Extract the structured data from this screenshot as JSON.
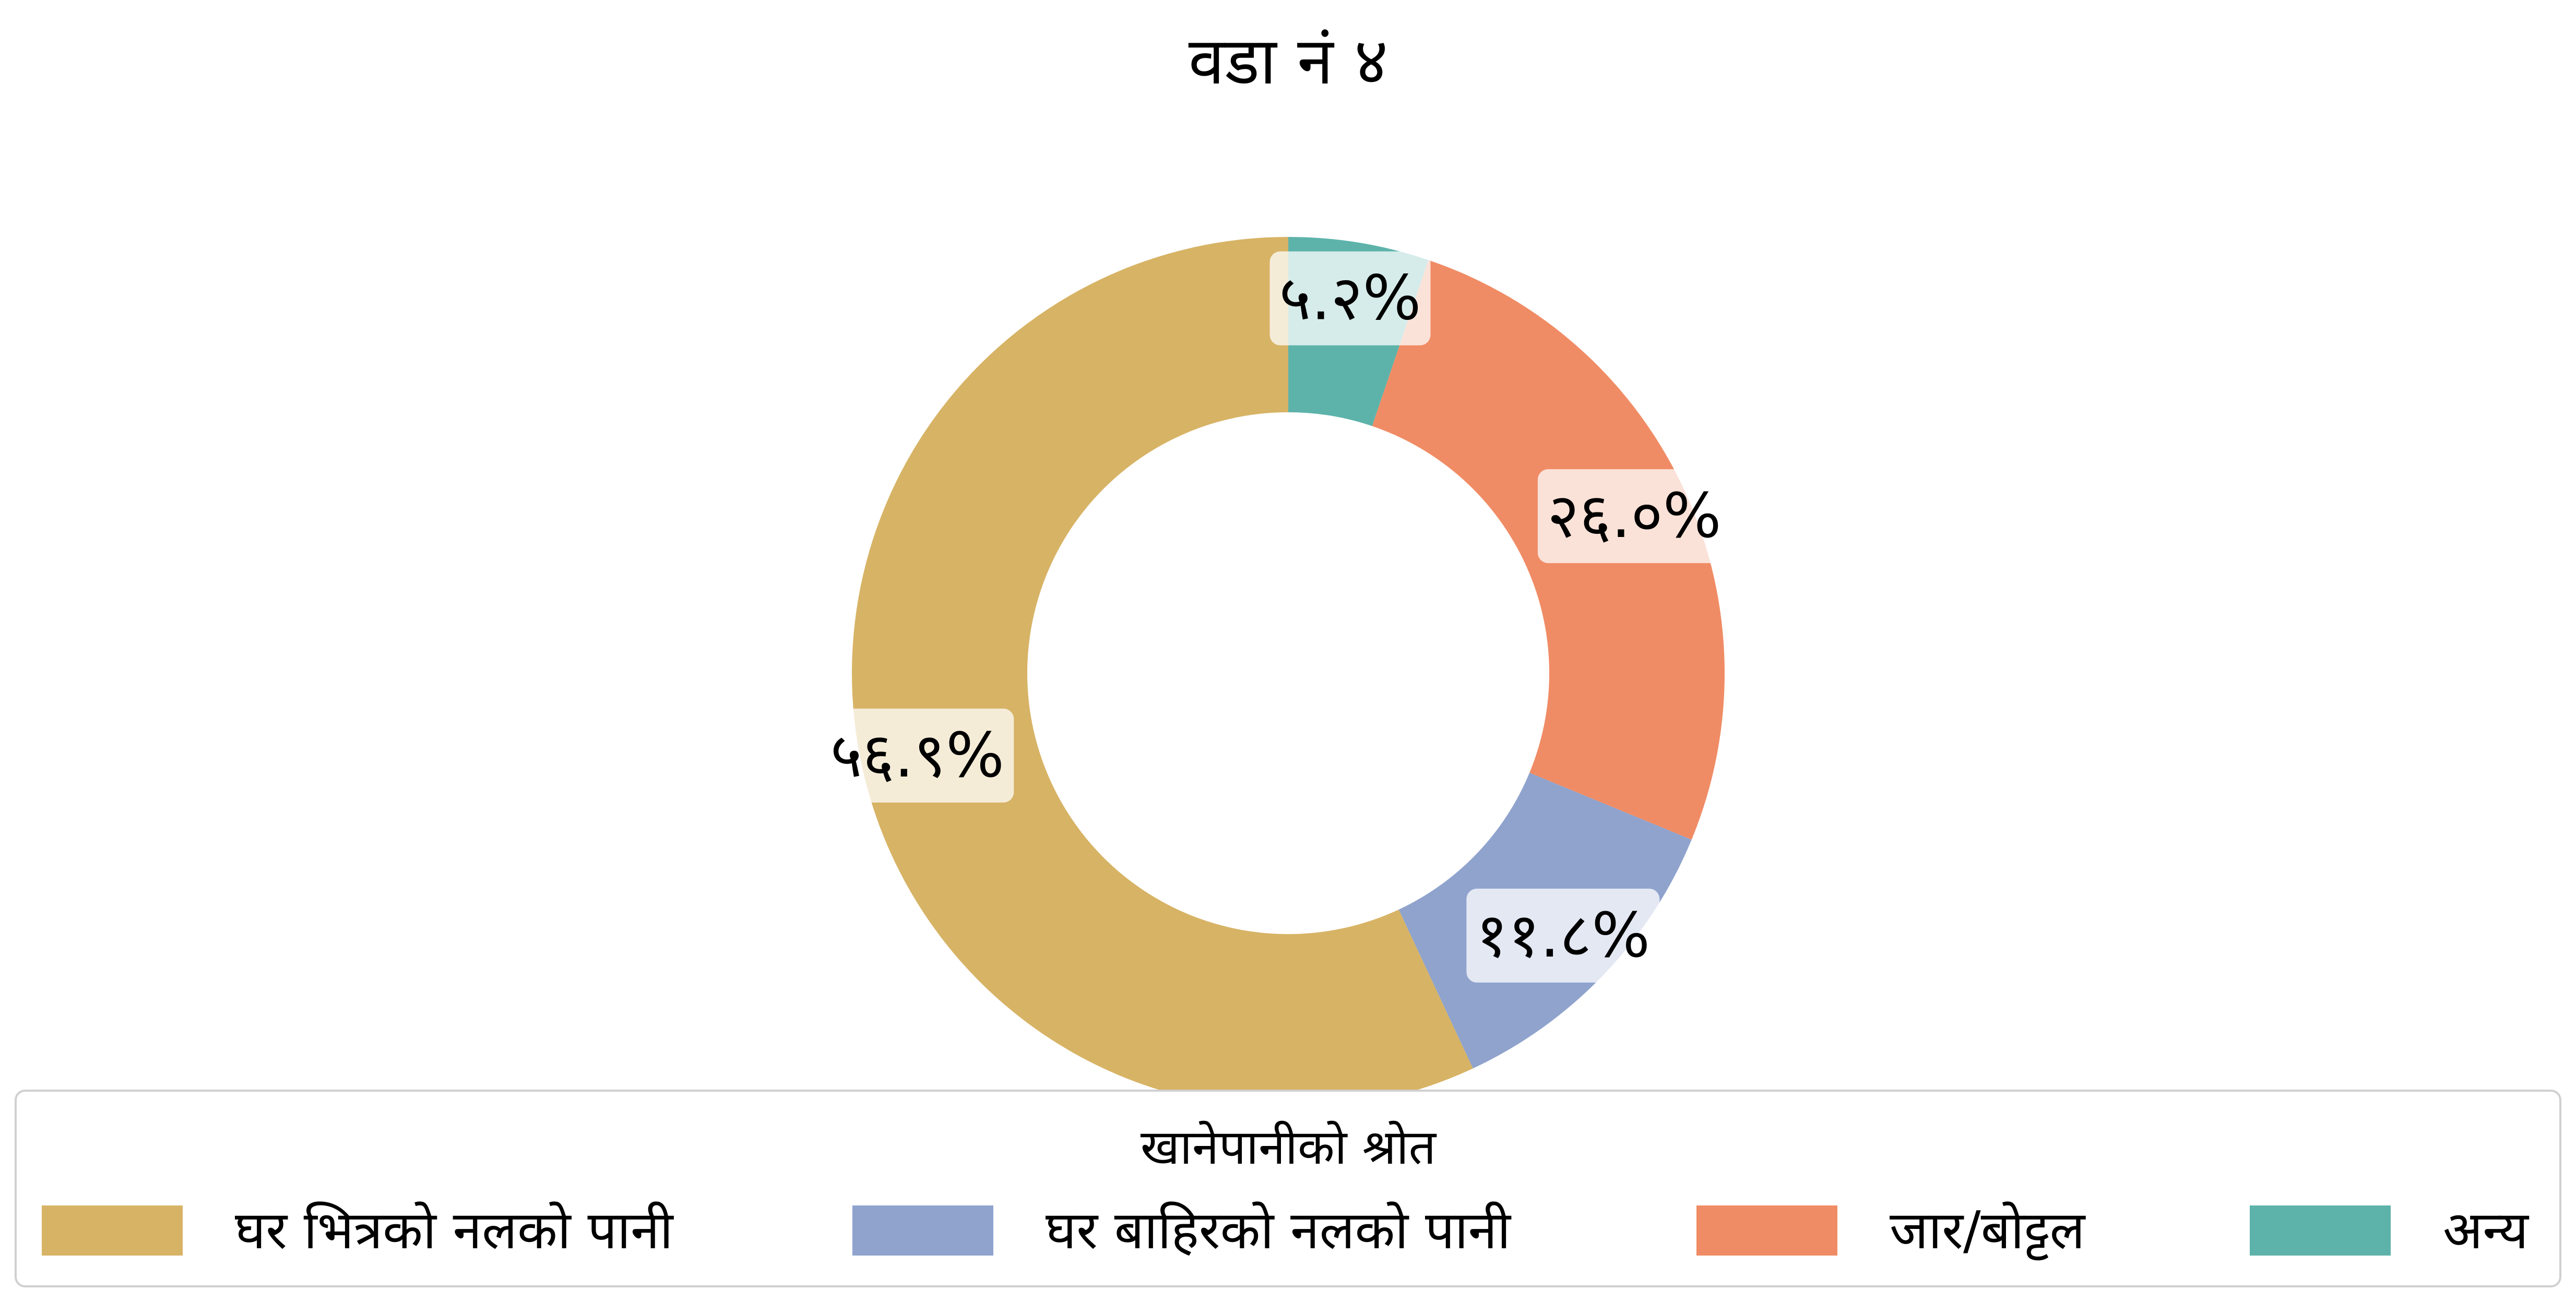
{
  "chart_data": {
    "type": "pie",
    "style": "donut",
    "title": "वडा नं ४",
    "legend_title": "खानेपानीको श्रोत",
    "legend_position": "bottom",
    "start": "top",
    "direction": "counterclockwise",
    "series": [
      {
        "name": "घर भित्रको नलको पानी",
        "value": 56.9,
        "label": "५६.९%",
        "color": "#D7B365"
      },
      {
        "name": "घर बाहिरको नलको पानी",
        "value": 11.8,
        "label": "११.८%",
        "color": "#8FA3CD"
      },
      {
        "name": "जार/बोट्टल",
        "value": 26.0,
        "label": "२६.०%",
        "color": "#F08C65"
      },
      {
        "name": "अन्य",
        "value": 5.2,
        "label": "५.२%",
        "color": "#5DB3AA"
      }
    ]
  }
}
